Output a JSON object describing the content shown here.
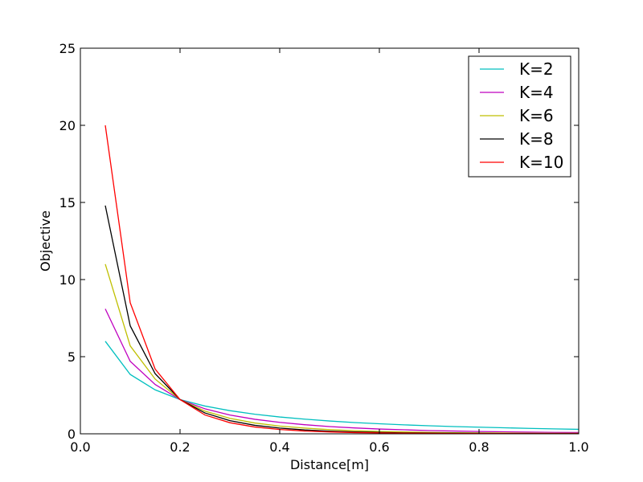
{
  "chart_data": {
    "type": "line",
    "title": "",
    "xlabel": "Distance[m]",
    "ylabel": "Objective",
    "xlim": [
      0.0,
      1.0
    ],
    "ylim": [
      0,
      25
    ],
    "xticks": [
      "0.0",
      "0.2",
      "0.4",
      "0.6",
      "0.8",
      "1.0"
    ],
    "yticks": [
      "0",
      "5",
      "10",
      "15",
      "20",
      "25"
    ],
    "grid": false,
    "legend": "upper-right",
    "x": [
      0.05,
      0.1,
      0.15,
      0.2,
      0.25,
      0.3,
      0.35,
      0.4,
      0.45,
      0.5,
      0.55,
      0.6,
      0.65,
      0.7,
      0.75,
      0.8,
      0.85,
      0.9,
      0.95,
      1.0
    ],
    "series": [
      {
        "name": "K=2",
        "color": "#00bfbf",
        "values": [
          6.0,
          3.85,
          2.85,
          2.22,
          1.8,
          1.5,
          1.27,
          1.09,
          0.95,
          0.83,
          0.73,
          0.65,
          0.58,
          0.52,
          0.47,
          0.43,
          0.39,
          0.35,
          0.32,
          0.29
        ]
      },
      {
        "name": "K=4",
        "color": "#bf00bf",
        "values": [
          8.1,
          4.7,
          3.2,
          2.22,
          1.62,
          1.22,
          0.94,
          0.74,
          0.59,
          0.47,
          0.38,
          0.31,
          0.26,
          0.21,
          0.18,
          0.15,
          0.13,
          0.11,
          0.09,
          0.08
        ]
      },
      {
        "name": "K=6",
        "color": "#bfbf00",
        "values": [
          11.0,
          5.7,
          3.55,
          2.22,
          1.47,
          1.0,
          0.7,
          0.5,
          0.37,
          0.27,
          0.2,
          0.15,
          0.12,
          0.09,
          0.07,
          0.06,
          0.05,
          0.04,
          0.03,
          0.03
        ]
      },
      {
        "name": "K=8",
        "color": "#000000",
        "values": [
          14.8,
          7.0,
          3.9,
          2.22,
          1.35,
          0.85,
          0.55,
          0.37,
          0.25,
          0.17,
          0.12,
          0.09,
          0.06,
          0.05,
          0.04,
          0.03,
          0.02,
          0.02,
          0.01,
          0.01
        ]
      },
      {
        "name": "K=10",
        "color": "#ff0000",
        "values": [
          20.0,
          8.5,
          4.2,
          2.22,
          1.22,
          0.72,
          0.44,
          0.28,
          0.18,
          0.12,
          0.08,
          0.06,
          0.04,
          0.03,
          0.02,
          0.02,
          0.01,
          0.01,
          0.01,
          0.01
        ]
      }
    ]
  }
}
